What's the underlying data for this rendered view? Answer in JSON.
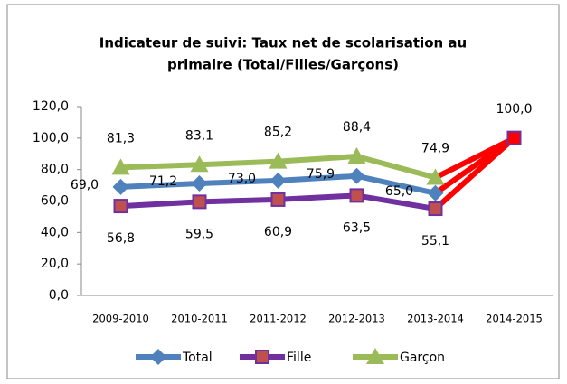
{
  "chart_data": {
    "type": "line",
    "title": [
      "Indicateur de suivi: Taux net de scolarisation au",
      "primaire (Total/Filles/Garçons)"
    ],
    "categories": [
      "2009-2010",
      "2010-2011",
      "2011-2012",
      "2012-2013",
      "2013-2014",
      "2014-2015"
    ],
    "series": [
      {
        "name": "Total",
        "color": "#4f81bd",
        "marker": "diamond",
        "label_position": "left",
        "values": [
          69.0,
          71.2,
          73.0,
          75.9,
          65.0,
          100.0
        ],
        "value_labels": [
          "69,0",
          "71,2",
          "73,0",
          "75,9",
          "65,0",
          null
        ]
      },
      {
        "name": "Fille",
        "color": "#7030a0",
        "marker_color": "#c0504d",
        "marker": "square",
        "label_position": "below",
        "values": [
          56.8,
          59.5,
          60.9,
          63.5,
          55.1,
          100.0
        ],
        "value_labels": [
          "56,8",
          "59,5",
          "60,9",
          "63,5",
          "55,1",
          null
        ]
      },
      {
        "name": "Garçon",
        "color": "#9bbb59",
        "marker": "triangle",
        "label_position": "above",
        "values": [
          81.3,
          83.1,
          85.2,
          88.4,
          74.9,
          100.0
        ],
        "value_labels": [
          "81,3",
          "83,1",
          "85,2",
          "88,4",
          "74,9",
          "100,0"
        ]
      }
    ],
    "last_segment_color": "#ff0000",
    "ylim": [
      0,
      120
    ],
    "yticks": [
      {
        "value": 0,
        "label": "0,0"
      },
      {
        "value": 20,
        "label": "20,0"
      },
      {
        "value": 40,
        "label": "40,0"
      },
      {
        "value": 60,
        "label": "60,0"
      },
      {
        "value": 80,
        "label": "80,0"
      },
      {
        "value": 100,
        "label": "100,0"
      },
      {
        "value": 120,
        "label": "120,0"
      }
    ],
    "legend": "bottom"
  }
}
